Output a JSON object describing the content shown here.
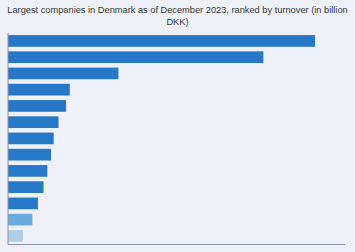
{
  "chart_data": {
    "type": "bar",
    "orientation": "horizontal",
    "title": "Largest companies in Denmark as of December 2023, ranked by turnover (in billion\nDKK)",
    "values": [
      820,
      682,
      295,
      165,
      155,
      135,
      122,
      115,
      105,
      95,
      80,
      65,
      40
    ],
    "colors": [
      "#2878c8",
      "#2878c8",
      "#2878c8",
      "#2878c8",
      "#2878c8",
      "#2878c8",
      "#2878c8",
      "#2878c8",
      "#2878c8",
      "#2878c8",
      "#2878c8",
      "#6aabe0",
      "#b0cce8"
    ],
    "xlim": [
      0,
      900
    ],
    "xticks": [],
    "grid": false,
    "tick_labels": false
  }
}
